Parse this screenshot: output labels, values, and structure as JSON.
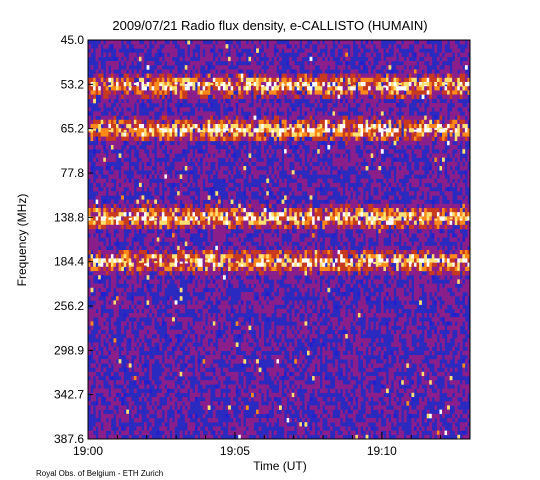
{
  "chart_data": {
    "type": "heatmap",
    "title": "2009/07/21  Radio flux density, e-CALLISTO (HUMAIN)",
    "xlabel": "Time (UT)",
    "ylabel": "Frequency (MHz)",
    "x_ticks": [
      "19:00",
      "19:05",
      "19:10"
    ],
    "x_range": [
      "19:00",
      "19:13"
    ],
    "y_ticks": [
      "45.0",
      "53.2",
      "65.2",
      "77.8",
      "138.8",
      "184.4",
      "256.2",
      "298.9",
      "342.7",
      "387.6"
    ],
    "y_direction": "increasing downward",
    "colormap": [
      "#00006e",
      "#2020d0",
      "#8a1e8a",
      "#c83a20",
      "#ff8a1a",
      "#ffe070",
      "#ffffff"
    ],
    "background_color": "#2a2ac0",
    "grid": false,
    "legend": "none",
    "bright_bands_mhz": [
      53.2,
      65.2,
      138.8,
      184.4
    ]
  },
  "credit": "Royal Obs. of Belgium - ETH Zurich"
}
